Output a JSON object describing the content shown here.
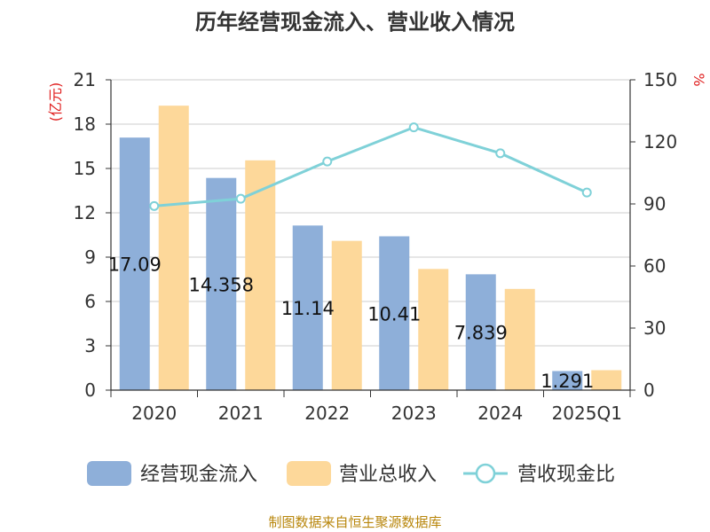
{
  "chart_data": {
    "type": "bar",
    "title": "历年经营现金流入、营业收入情况",
    "categories": [
      "2020",
      "2021",
      "2022",
      "2023",
      "2024",
      "2025Q1"
    ],
    "left_axis": {
      "unit": "(亿元)",
      "ylim": [
        0,
        21
      ],
      "ticks": [
        "0",
        "3",
        "6",
        "9",
        "12",
        "15",
        "18",
        "21"
      ]
    },
    "right_axis": {
      "unit": "%",
      "ylim": [
        0,
        150
      ],
      "ticks": [
        "0",
        "30",
        "60",
        "90",
        "120",
        "150"
      ]
    },
    "series": [
      {
        "name": "经营现金流入",
        "kind": "bar",
        "axis": "left",
        "color": "#8eafd9",
        "values": [
          17.09,
          14.358,
          11.14,
          10.41,
          7.839,
          1.291
        ],
        "labels": [
          "17.09",
          "14.358",
          "11.14",
          "10.41",
          "7.839",
          "1.291"
        ]
      },
      {
        "name": "营业总收入",
        "kind": "bar",
        "axis": "left",
        "color": "#fdd89a",
        "values": [
          19.25,
          15.55,
          10.1,
          8.2,
          6.85,
          1.35
        ]
      },
      {
        "name": "营收现金比",
        "kind": "line",
        "axis": "right",
        "color": "#7fd1d8",
        "values": [
          89,
          92.5,
          110.5,
          127,
          114.5,
          95.5
        ]
      }
    ],
    "grid": true,
    "legend_position": "bottom"
  },
  "source": "制图数据来自恒生聚源数据库"
}
